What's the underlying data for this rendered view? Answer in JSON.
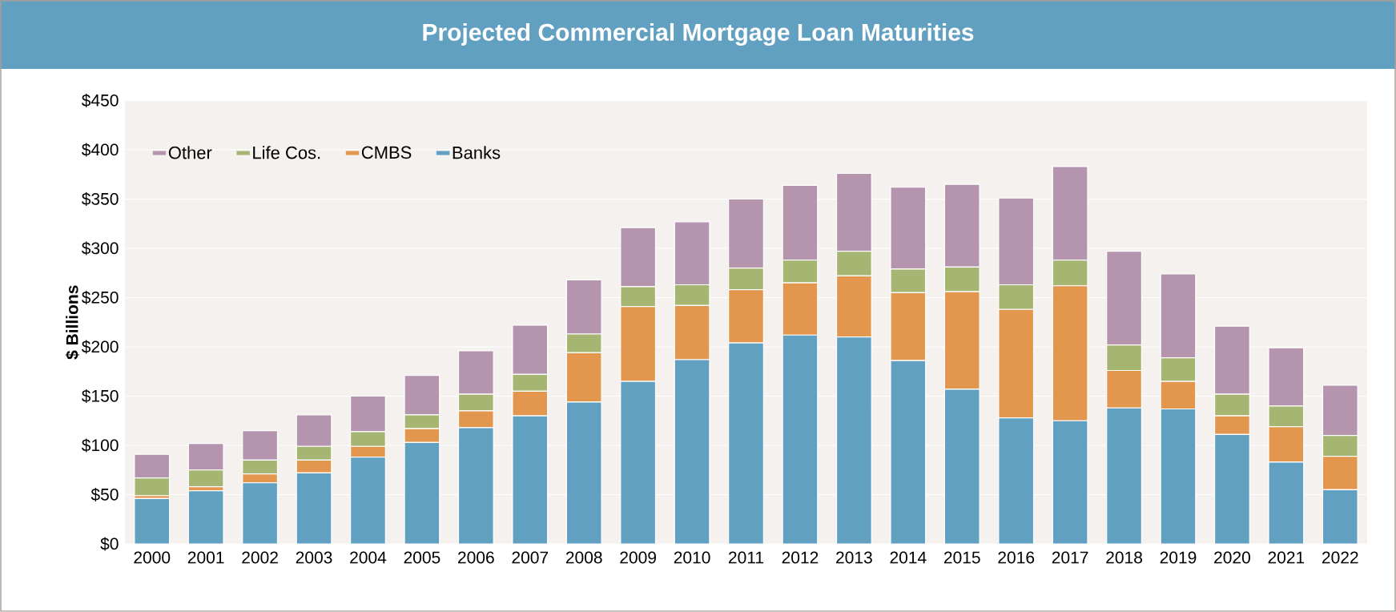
{
  "chart_data": {
    "type": "bar",
    "title": "Projected Commercial Mortgage Loan Maturities",
    "ylabel": "$ Billions",
    "categories": [
      "2000",
      "2001",
      "2002",
      "2003",
      "2004",
      "2005",
      "2006",
      "2007",
      "2008",
      "2009",
      "2010",
      "2011",
      "2012",
      "2013",
      "2014",
      "2015",
      "2016",
      "2017",
      "2018",
      "2019",
      "2020",
      "2021",
      "2022"
    ],
    "stacked": true,
    "series": [
      {
        "name": "Banks",
        "color": "#62a0c2",
        "values": [
          46,
          54,
          62,
          72,
          88,
          103,
          118,
          130,
          144,
          165,
          187,
          204,
          212,
          210,
          186,
          157,
          128,
          125,
          138,
          137,
          111,
          83,
          55
        ]
      },
      {
        "name": "CMBS",
        "color": "#e3964e",
        "values": [
          3,
          4,
          9,
          13,
          11,
          14,
          17,
          25,
          50,
          76,
          55,
          54,
          53,
          62,
          69,
          99,
          110,
          137,
          38,
          28,
          19,
          36,
          34
        ]
      },
      {
        "name": "Life Cos.",
        "color": "#a7b573",
        "values": [
          18,
          17,
          14,
          14,
          15,
          14,
          17,
          17,
          19,
          20,
          21,
          22,
          23,
          25,
          24,
          25,
          25,
          26,
          26,
          24,
          22,
          21,
          21
        ]
      },
      {
        "name": "Other",
        "color": "#b595ae",
        "values": [
          24,
          27,
          30,
          32,
          36,
          40,
          44,
          50,
          55,
          60,
          64,
          70,
          76,
          79,
          83,
          84,
          88,
          95,
          95,
          85,
          69,
          59,
          51
        ]
      }
    ],
    "ylim": [
      0,
      450
    ],
    "yticks": [
      {
        "value": 0,
        "label": "$0"
      },
      {
        "value": 50,
        "label": "$50"
      },
      {
        "value": 100,
        "label": "$100"
      },
      {
        "value": 150,
        "label": "$150"
      },
      {
        "value": 200,
        "label": "$200"
      },
      {
        "value": 250,
        "label": "$250"
      },
      {
        "value": 300,
        "label": "$300"
      },
      {
        "value": 350,
        "label": "$350"
      },
      {
        "value": 400,
        "label": "$400"
      },
      {
        "value": 450,
        "label": "$450"
      }
    ],
    "grid": "y",
    "legend": "top left"
  }
}
